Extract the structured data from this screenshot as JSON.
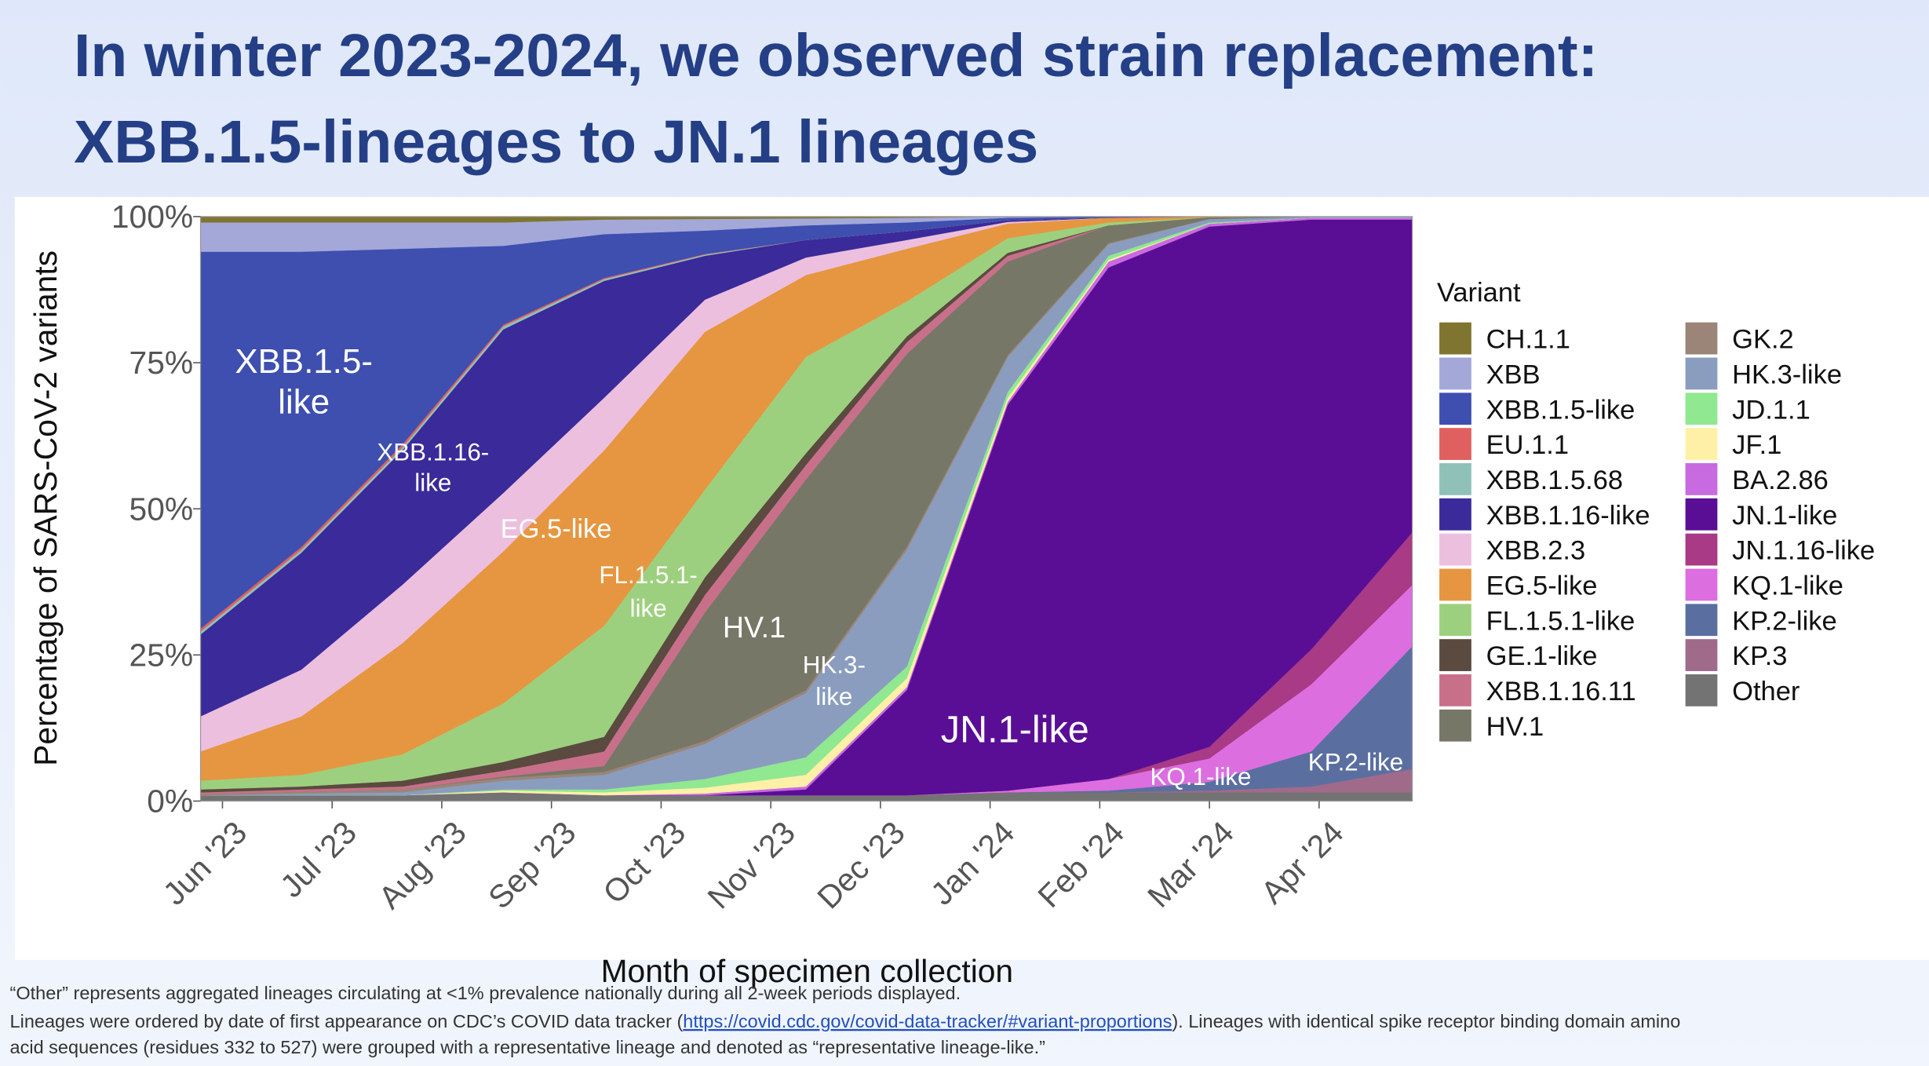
{
  "chart_data": {
    "type": "stacked_area",
    "title": [
      "In winter 2023-2024, we observed strain replacement:",
      "XBB.1.5-lineages to JN.1 lineages"
    ],
    "y_label": "Percentage of SARS-CoV-2 variants",
    "x_label": "Month of specimen collection",
    "legend_title": "Variant",
    "x": [
      -0.2,
      0.72,
      1.64,
      2.56,
      3.48,
      4.4,
      5.32,
      6.24,
      7.16,
      8.08,
      9.0,
      9.93,
      10.85
    ],
    "xlim": [
      -0.2,
      10.85
    ],
    "xticks": [
      {
        "value": 0,
        "label": "Jun '23"
      },
      {
        "value": 1,
        "label": "Jul '23"
      },
      {
        "value": 2,
        "label": "Aug '23"
      },
      {
        "value": 3,
        "label": "Sep '23"
      },
      {
        "value": 4,
        "label": "Oct '23"
      },
      {
        "value": 5,
        "label": "Nov '23"
      },
      {
        "value": 6,
        "label": "Dec '23"
      },
      {
        "value": 7,
        "label": "Jan '24"
      },
      {
        "value": 8,
        "label": "Feb '24"
      },
      {
        "value": 9,
        "label": "Mar '24"
      },
      {
        "value": 10,
        "label": "Apr '24"
      }
    ],
    "ylim": [
      0,
      100
    ],
    "yticks": [
      {
        "value": 0,
        "label": "0%"
      },
      {
        "value": 25,
        "label": "25%"
      },
      {
        "value": 50,
        "label": "50%"
      },
      {
        "value": 75,
        "label": "75%"
      },
      {
        "value": 100,
        "label": "100%"
      }
    ],
    "series": [
      {
        "name": "CH.1.1",
        "color": "#7f7530",
        "values": [
          1,
          1,
          1,
          1,
          0.5,
          0.4,
          0.3,
          0.2,
          0,
          0,
          0,
          0,
          0
        ]
      },
      {
        "name": "XBB",
        "color": "#a3a8d8",
        "values": [
          5,
          5,
          4.5,
          4,
          2.5,
          2,
          1.2,
          0.8,
          0.2,
          0,
          0,
          0,
          0
        ]
      },
      {
        "name": "XBB.1.5-like",
        "color": "#3e4fb0",
        "values": [
          64.5,
          50.5,
          33.5,
          13.5,
          7.5,
          4,
          2.5,
          1.5,
          0.4,
          0.2,
          0,
          0,
          0
        ]
      },
      {
        "name": "EU.1.1",
        "color": "#e06060",
        "values": [
          0.5,
          0.5,
          0.5,
          0.3,
          0.2,
          0.1,
          0,
          0,
          0,
          0,
          0,
          0,
          0
        ]
      },
      {
        "name": "XBB.1.5.68",
        "color": "#8fc1b8",
        "values": [
          0.5,
          0.5,
          0.5,
          0.5,
          0.3,
          0.2,
          0,
          0,
          0,
          0,
          0,
          0,
          0
        ]
      },
      {
        "name": "XBB.1.16-like",
        "color": "#3a2a9a",
        "values": [
          14,
          20,
          23,
          28,
          20,
          7.5,
          3,
          1.5,
          0.3,
          0,
          0,
          0,
          0
        ]
      },
      {
        "name": "XBB.2.3",
        "color": "#ecbfde",
        "values": [
          6,
          8,
          10,
          10,
          9,
          5.5,
          3,
          1.5,
          0.3,
          0,
          0,
          0,
          0
        ]
      },
      {
        "name": "EG.5-like",
        "color": "#e69640",
        "values": [
          5,
          10,
          19,
          26,
          30,
          27,
          14,
          9,
          2.5,
          0.8,
          0.1,
          0,
          0
        ]
      },
      {
        "name": "FL.1.5.1-like",
        "color": "#9dd07e",
        "values": [
          1.5,
          2,
          4.5,
          10,
          19,
          15,
          16.5,
          6,
          2.5,
          0.5,
          0,
          0,
          0
        ]
      },
      {
        "name": "GE.1-like",
        "color": "#5a4a40",
        "values": [
          0.5,
          0.5,
          1,
          1.5,
          2.5,
          3,
          2,
          1,
          0.5,
          0,
          0,
          0,
          0
        ]
      },
      {
        "name": "XBB.1.16.11",
        "color": "#c8708a",
        "values": [
          0.3,
          0.4,
          0.5,
          1,
          2.5,
          3,
          2.5,
          2,
          1,
          0,
          0,
          0,
          0
        ]
      },
      {
        "name": "HV.1",
        "color": "#777767",
        "values": [
          0,
          0,
          0,
          0.2,
          1,
          22,
          36,
          33,
          16,
          3,
          0.3,
          0,
          0
        ]
      },
      {
        "name": "GK.2",
        "color": "#9a8578",
        "values": [
          0.2,
          0.3,
          0.5,
          0.5,
          0.5,
          0.5,
          0.5,
          0.5,
          0.3,
          0.2,
          0,
          0,
          0
        ]
      },
      {
        "name": "HK.3-like",
        "color": "#8a9dbe",
        "values": [
          0,
          0.3,
          0.5,
          1.5,
          2.5,
          6,
          11,
          20,
          6,
          2,
          0.6,
          0.2,
          0.2
        ]
      },
      {
        "name": "JD.1.1",
        "color": "#90e890",
        "values": [
          0,
          0,
          0,
          0.2,
          0.5,
          1.5,
          3,
          2,
          1,
          0.7,
          0.2,
          0,
          0
        ]
      },
      {
        "name": "JF.1",
        "color": "#fff0a8",
        "values": [
          0,
          0,
          0,
          0.3,
          0.5,
          1,
          2,
          1.5,
          0.7,
          0.3,
          0,
          0,
          0
        ]
      },
      {
        "name": "BA.2.86",
        "color": "#c86ae0",
        "values": [
          0,
          0,
          0,
          0,
          0,
          0.3,
          0.5,
          0.5,
          0.5,
          1,
          0.5,
          0.3,
          0.3
        ]
      },
      {
        "name": "JN.1-like",
        "color": "#5a0e96",
        "values": [
          0,
          0,
          0,
          0,
          0,
          0,
          1,
          18,
          66,
          87.5,
          89,
          73.5,
          53.5
        ]
      },
      {
        "name": "JN.1.16-like",
        "color": "#a83a86",
        "values": [
          0,
          0,
          0,
          0,
          0,
          0,
          0,
          0,
          0,
          0,
          2,
          6,
          9
        ]
      },
      {
        "name": "KQ.1-like",
        "color": "#dc6ee0",
        "values": [
          0,
          0,
          0,
          0,
          0,
          0,
          0,
          0,
          0.3,
          2,
          4,
          11.5,
          10.5
        ]
      },
      {
        "name": "KP.2-like",
        "color": "#5a6fa0",
        "values": [
          0,
          0,
          0,
          0,
          0,
          0,
          0,
          0,
          0,
          0.3,
          1.5,
          6,
          21
        ]
      },
      {
        "name": "KP.3",
        "color": "#a06a8a",
        "values": [
          0,
          0,
          0,
          0,
          0,
          0,
          0,
          0,
          0,
          0,
          0.3,
          1,
          4
        ]
      },
      {
        "name": "Other",
        "color": "#737373",
        "values": [
          1,
          1,
          1,
          1.5,
          1,
          1,
          1,
          1,
          1.5,
          1.5,
          1.5,
          1.5,
          1.5
        ]
      }
    ],
    "annotations": [
      [
        "XBB.1.5-",
        "like"
      ],
      [
        "XBB.1.16-",
        "like"
      ],
      [
        "EG.5-like"
      ],
      [
        "FL.1.5.1-",
        "like"
      ],
      [
        "HV.1"
      ],
      [
        "HK.3-",
        "like"
      ],
      [
        "JN.1-like"
      ],
      [
        "KQ.1-like"
      ],
      [
        "KP.2-like"
      ]
    ],
    "footnote": {
      "line1": "“Other” represents aggregated lineages circulating at <1% prevalence nationally during all 2-week periods displayed.",
      "line2_start": "Lineages were ordered by date of first appearance on CDC’s COVID data tracker (",
      "link": "https://covid.cdc.gov/covid-data-tracker/#variant-proportions",
      "line2_end": "). Lineages with identical spike receptor binding domain amino",
      "line3": "acid sequences (residues 332 to 527) were grouped with a representative lineage and denoted as “representative lineage-like.”"
    }
  }
}
